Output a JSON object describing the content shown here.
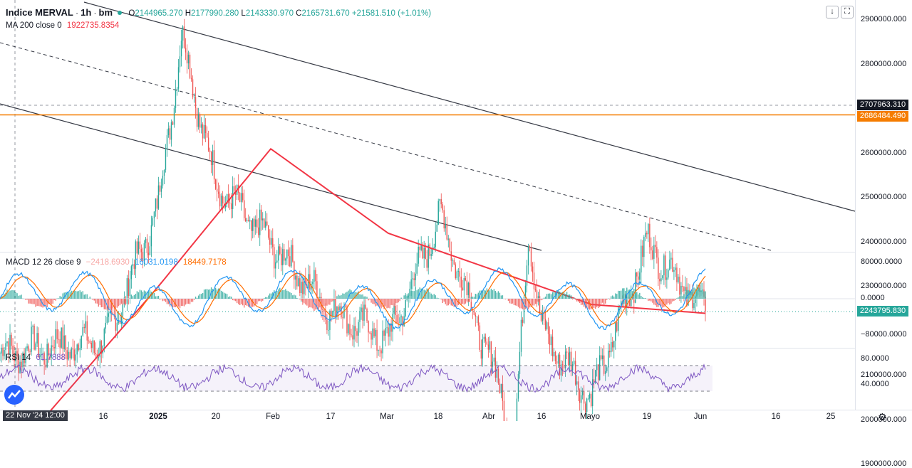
{
  "header": {
    "symbol": "Indice MERVAL",
    "interval": "1h",
    "exchange": "bm",
    "ohlc": {
      "o_label": "O",
      "o": "2144965.270",
      "h_label": "H",
      "h": "2177990.280",
      "l_label": "L",
      "l": "2143330.970",
      "c_label": "C",
      "c": "2165731.670",
      "change": "+21581.510 (+1.01%)"
    }
  },
  "toolbar": {
    "download_icon": "↓",
    "fullscreen_icon": "⛶"
  },
  "ma_legend": {
    "label": "MA 200 close 0",
    "value": "1922735.8354"
  },
  "macd_legend": {
    "label": "MACD 12 26 close 9",
    "histogram": "−2418.6930",
    "macd": "16031.0198",
    "signal": "18449.7178"
  },
  "rsi_legend": {
    "label": "RSI 14",
    "value": "61.7888"
  },
  "price_axis": [
    {
      "label": "2900000.000",
      "value": 2900000
    },
    {
      "label": "2800000.000",
      "value": 2800000
    },
    {
      "label": "2600000.000",
      "value": 2600000
    },
    {
      "label": "2500000.000",
      "value": 2500000
    },
    {
      "label": "2400000.000",
      "value": 2400000
    },
    {
      "label": "2300000.000",
      "value": 2300000
    },
    {
      "label": "2100000.000",
      "value": 2100000
    },
    {
      "label": "2000000.000",
      "value": 2000000
    },
    {
      "label": "1900000.000",
      "value": 1900000
    }
  ],
  "price_badges": {
    "crosshair": {
      "label": "2707963.310",
      "value": 2707963.31
    },
    "horizontal_line": {
      "label": "2686484.490",
      "value": 2686484.49
    },
    "last_price": {
      "label": "2243795.830",
      "value": 2243795.83
    }
  },
  "macd_axis": [
    {
      "label": "80000.0000",
      "value": 80000
    },
    {
      "label": "0.0000",
      "value": 0
    },
    {
      "label": "−80000.0000",
      "value": -80000
    }
  ],
  "rsi_axis": [
    {
      "label": "80.0000",
      "value": 80
    },
    {
      "label": "40.0000",
      "value": 40
    }
  ],
  "time_axis": [
    {
      "label": "16",
      "bold": false
    },
    {
      "label": "2025",
      "bold": true
    },
    {
      "label": "20",
      "bold": false
    },
    {
      "label": "Feb",
      "bold": false
    },
    {
      "label": "17",
      "bold": false
    },
    {
      "label": "Mar",
      "bold": false
    },
    {
      "label": "18",
      "bold": false
    },
    {
      "label": "Abr",
      "bold": false
    },
    {
      "label": "16",
      "bold": false
    },
    {
      "label": "Mayo",
      "bold": false
    },
    {
      "label": "19",
      "bold": false
    },
    {
      "label": "Jun",
      "bold": false
    },
    {
      "label": "16",
      "bold": false
    },
    {
      "label": "25",
      "bold": false
    }
  ],
  "time_cursor": "22 Nov '24  12:00",
  "colors": {
    "up": "#26a69a",
    "down": "#ef5350",
    "ma": "#f23645",
    "horizontal_line": "#f57c00",
    "macd": "#2196f3",
    "signal": "#ff6d00",
    "rsi": "#7e57c2",
    "channel": "#363a45"
  },
  "chart_data": {
    "type": "candlestick",
    "series_ma": "MA 200",
    "key_points_close": [
      {
        "date": "22 Nov '24",
        "close": 2150000
      },
      {
        "date": "16 Dec",
        "close": 2180000
      },
      {
        "date": "2025",
        "close": 2480000
      },
      {
        "date": "~Jan 8",
        "close": 2860000
      },
      {
        "date": "20 Jan",
        "close": 2530000
      },
      {
        "date": "Feb",
        "close": 2400000
      },
      {
        "date": "17 Feb",
        "close": 2250000
      },
      {
        "date": "Mar",
        "close": 2180000
      },
      {
        "date": "18 Mar",
        "close": 2460000
      },
      {
        "date": "Abr",
        "close": 2050000
      },
      {
        "date": "~Apr 7",
        "close": 1890000
      },
      {
        "date": "~Apr 10",
        "close": 2440000
      },
      {
        "date": "16 Apr",
        "close": 2200000
      },
      {
        "date": "Mayo",
        "close": 2050000
      },
      {
        "date": "19 May",
        "close": 2400000
      },
      {
        "date": "Jun",
        "close": 2243795.83
      }
    ],
    "ma_key_points": [
      {
        "date": "22 Nov '24",
        "value": 1890000
      },
      {
        "date": "2025",
        "value": 2300000
      },
      {
        "date": "Feb",
        "value": 2610000
      },
      {
        "date": "Mar",
        "value": 2420000
      },
      {
        "date": "Abr",
        "value": 2330000
      },
      {
        "date": "Mayo",
        "value": 2260000
      },
      {
        "date": "Jun",
        "value": 2240000
      }
    ],
    "ylim": [
      1860000,
      2960000
    ]
  }
}
